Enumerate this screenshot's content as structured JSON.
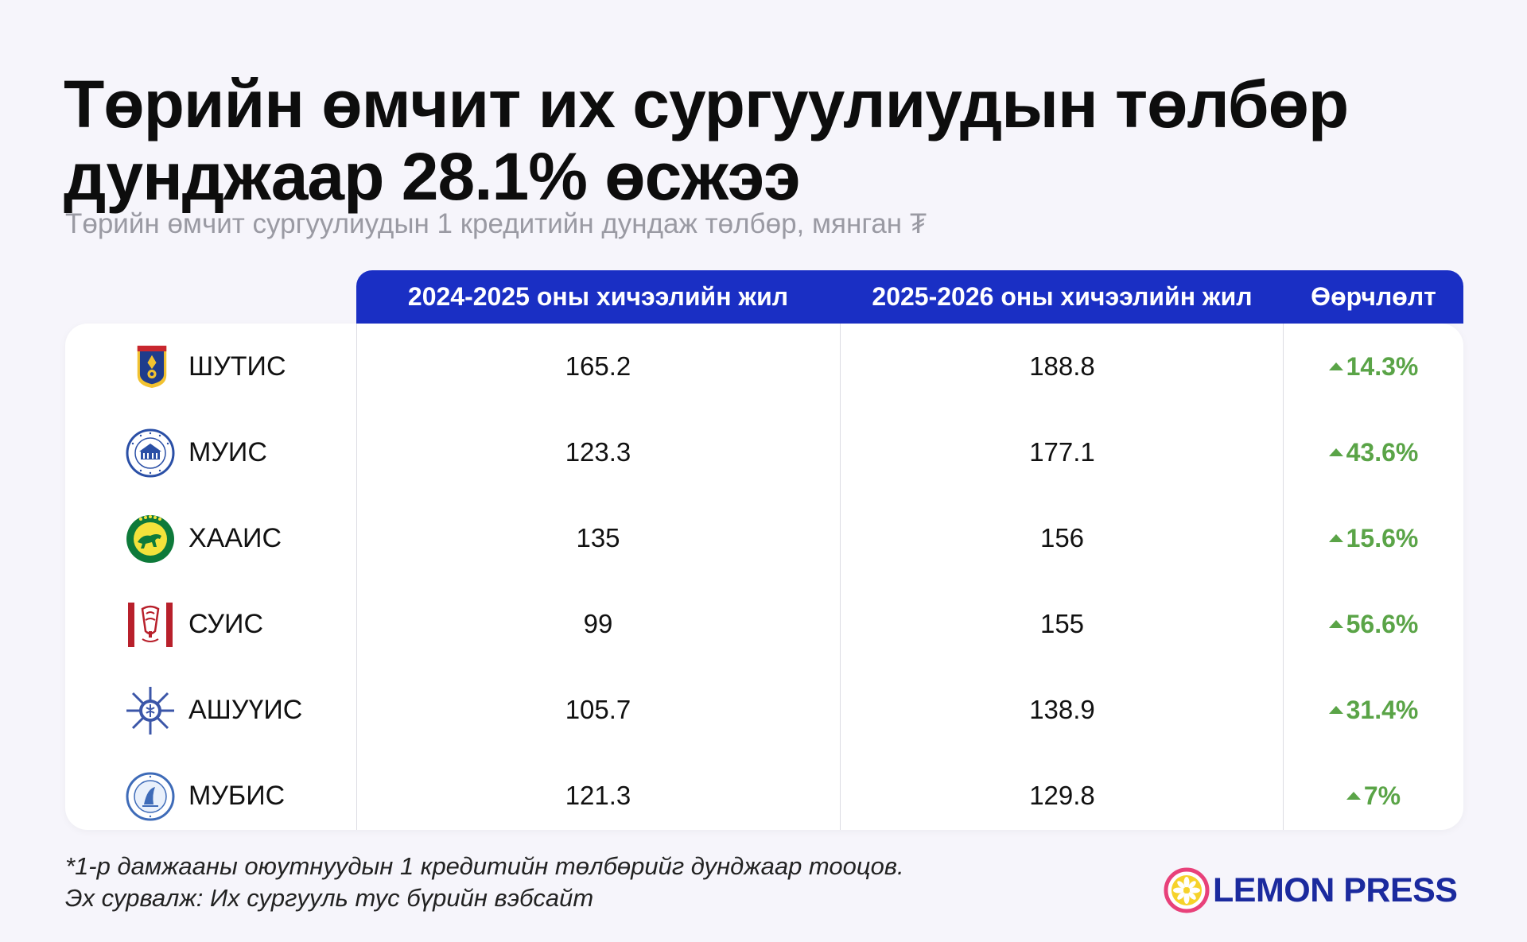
{
  "title": "Төрийн өмчит их сургуулиудын төлбөр дунджаар 28.1% өсжээ",
  "subtitle": "Төрийн өмчит сургуулиудын 1 кредитийн дундаж төлбөр, мянган ₮",
  "chart_data": {
    "type": "table",
    "columns": [
      "2024-2025 оны хичээлийн жил",
      "2025-2026 оны хичээлийн жил",
      "Өөрчлөлт"
    ],
    "rows": [
      {
        "name": "ШУТИС",
        "logo": "shutis-logo",
        "v2024": "165.2",
        "v2025": "188.8",
        "change": "14.3%"
      },
      {
        "name": "МУИС",
        "logo": "muis-logo",
        "v2024": "123.3",
        "v2025": "177.1",
        "change": "43.6%"
      },
      {
        "name": "ХААИС",
        "logo": "khaais-logo",
        "v2024": "135",
        "v2025": "156",
        "change": "15.6%"
      },
      {
        "name": "СУИС",
        "logo": "suis-logo",
        "v2024": "99",
        "v2025": "155",
        "change": "56.6%"
      },
      {
        "name": "АШУҮИС",
        "logo": "ashuuis-logo",
        "v2024": "105.7",
        "v2025": "138.9",
        "change": "31.4%"
      },
      {
        "name": "МУБИС",
        "logo": "mubis-logo",
        "v2024": "121.3",
        "v2025": "129.8",
        "change": "7%"
      }
    ]
  },
  "colors": {
    "header": "#1a2fc4",
    "increase": "#5aa447",
    "brand": "#1b2a9e"
  },
  "footnote": {
    "line1": "*1-р дамжааны оюутнуудын 1 кредитийн төлбөрийг дунджаар тооцов.",
    "line2": "Эх сурвалж: Их сургууль тус бүрийн вэбсайт"
  },
  "brand": {
    "name": "LEMON PRESS"
  }
}
